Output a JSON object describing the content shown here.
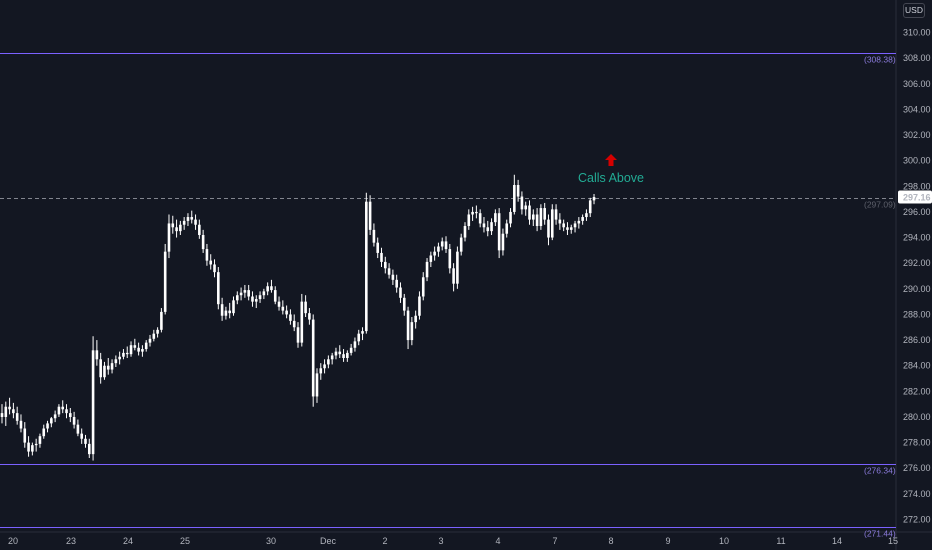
{
  "chart_data": {
    "type": "candlestick",
    "currency": "USD",
    "x_ticks": [
      "20",
      "23",
      "24",
      "25",
      "30",
      "Dec",
      "2",
      "3",
      "4",
      "7",
      "8",
      "9",
      "10",
      "11",
      "14",
      "15"
    ],
    "y_ticks": [
      "272.00",
      "274.00",
      "276.00",
      "278.00",
      "280.00",
      "282.00",
      "284.00",
      "286.00",
      "288.00",
      "290.00",
      "292.00",
      "294.00",
      "296.00",
      "298.00",
      "300.00",
      "302.00",
      "304.00",
      "306.00",
      "308.00",
      "310.00"
    ],
    "ylim": [
      271.0,
      312.0
    ],
    "last_price": "297.16",
    "horizontal_levels": [
      {
        "value": 308.38,
        "label": "308.38",
        "color": "#7b61ff",
        "style": "solid"
      },
      {
        "value": 297.09,
        "label": "297.09",
        "color": "#787b86",
        "style": "dashed"
      },
      {
        "value": 276.34,
        "label": "276.34",
        "color": "#7b61ff",
        "style": "solid"
      },
      {
        "value": 271.44,
        "label": "271.44",
        "color": "#7b61ff",
        "style": "solid"
      }
    ],
    "annotation": {
      "text": "Calls Above",
      "price": 299.3,
      "color": "#22ab94",
      "arrow_color": "#d50000"
    },
    "colors": {
      "background": "#131722",
      "candle": "#ffffff",
      "last_price_bg": "#ffffff",
      "last_price_text": "#131722"
    },
    "series": [
      {
        "values": [
          [
            280.3,
            281.0,
            279.5,
            280.0
          ],
          [
            280.0,
            281.2,
            279.3,
            280.8
          ],
          [
            280.8,
            281.5,
            280.2,
            280.6
          ],
          [
            280.6,
            281.1,
            279.9,
            280.3
          ],
          [
            280.3,
            280.8,
            279.4,
            279.7
          ],
          [
            279.7,
            280.2,
            278.8,
            279.1
          ],
          [
            279.1,
            279.6,
            277.6,
            278.0
          ],
          [
            278.0,
            278.5,
            276.9,
            277.3
          ],
          [
            277.3,
            278.0,
            277.0,
            277.8
          ],
          [
            277.8,
            278.3,
            277.3,
            277.9
          ],
          [
            277.9,
            278.7,
            277.6,
            278.5
          ],
          [
            278.5,
            279.4,
            278.3,
            279.1
          ],
          [
            279.1,
            279.7,
            278.8,
            279.5
          ],
          [
            279.5,
            280.0,
            279.2,
            279.9
          ],
          [
            279.9,
            280.5,
            279.6,
            280.2
          ],
          [
            280.2,
            281.0,
            280.0,
            280.8
          ],
          [
            280.8,
            281.3,
            280.3,
            280.6
          ],
          [
            280.6,
            281.0,
            279.9,
            280.3
          ],
          [
            280.3,
            280.7,
            279.6,
            280.0
          ],
          [
            280.0,
            280.4,
            279.1,
            279.4
          ],
          [
            279.4,
            279.8,
            278.5,
            278.7
          ],
          [
            278.7,
            279.1,
            277.9,
            278.3
          ],
          [
            278.3,
            278.6,
            277.6,
            277.9
          ],
          [
            277.9,
            278.3,
            276.8,
            277.1
          ],
          [
            277.1,
            286.3,
            276.6,
            285.2
          ],
          [
            285.2,
            286.0,
            284.0,
            284.5
          ],
          [
            284.5,
            285.0,
            282.6,
            283.1
          ],
          [
            283.1,
            284.3,
            282.9,
            284.0
          ],
          [
            284.0,
            284.6,
            283.3,
            283.7
          ],
          [
            283.7,
            284.5,
            283.4,
            284.2
          ],
          [
            284.2,
            284.8,
            283.9,
            284.5
          ],
          [
            284.5,
            285.1,
            284.1,
            284.7
          ],
          [
            284.7,
            285.3,
            284.5,
            285.0
          ],
          [
            285.0,
            285.5,
            284.6,
            284.9
          ],
          [
            284.9,
            285.9,
            284.7,
            285.6
          ],
          [
            285.6,
            286.1,
            285.2,
            285.4
          ],
          [
            285.4,
            285.8,
            284.8,
            285.1
          ],
          [
            285.1,
            285.6,
            284.7,
            285.3
          ],
          [
            285.3,
            286.0,
            285.1,
            285.8
          ],
          [
            285.8,
            286.4,
            285.5,
            286.1
          ],
          [
            286.1,
            286.8,
            285.9,
            286.5
          ],
          [
            286.5,
            287.0,
            286.2,
            286.8
          ],
          [
            286.8,
            288.5,
            286.6,
            288.2
          ],
          [
            288.2,
            293.5,
            288.0,
            292.9
          ],
          [
            292.9,
            295.8,
            292.4,
            295.1
          ],
          [
            295.1,
            295.7,
            294.3,
            294.8
          ],
          [
            294.8,
            295.4,
            294.0,
            294.5
          ],
          [
            294.5,
            295.3,
            294.2,
            295.0
          ],
          [
            295.0,
            295.6,
            294.6,
            295.3
          ],
          [
            295.3,
            295.9,
            294.9,
            295.6
          ],
          [
            295.6,
            296.1,
            295.1,
            295.4
          ],
          [
            295.4,
            295.8,
            294.6,
            295.0
          ],
          [
            295.0,
            295.4,
            293.9,
            294.2
          ],
          [
            294.2,
            294.6,
            292.8,
            293.1
          ],
          [
            293.1,
            293.5,
            291.8,
            292.2
          ],
          [
            292.2,
            292.7,
            291.5,
            291.9
          ],
          [
            291.9,
            292.3,
            290.9,
            291.3
          ],
          [
            291.3,
            291.7,
            288.4,
            288.8
          ],
          [
            288.8,
            289.3,
            287.5,
            287.9
          ],
          [
            287.9,
            288.6,
            287.6,
            288.3
          ],
          [
            288.3,
            288.9,
            287.7,
            288.1
          ],
          [
            288.1,
            289.4,
            287.9,
            289.1
          ],
          [
            289.1,
            289.8,
            288.8,
            289.5
          ],
          [
            289.5,
            290.1,
            289.1,
            289.7
          ],
          [
            289.7,
            290.3,
            289.3,
            289.9
          ],
          [
            289.9,
            290.3,
            289.1,
            289.4
          ],
          [
            289.4,
            289.8,
            288.6,
            289.0
          ],
          [
            289.0,
            289.5,
            288.5,
            289.2
          ],
          [
            289.2,
            289.8,
            288.9,
            289.5
          ],
          [
            289.5,
            290.0,
            289.2,
            289.8
          ],
          [
            289.8,
            290.5,
            289.5,
            290.2
          ],
          [
            290.2,
            290.7,
            289.7,
            289.9
          ],
          [
            289.9,
            290.2,
            288.8,
            289.0
          ],
          [
            289.0,
            289.4,
            288.3,
            288.6
          ],
          [
            288.6,
            289.1,
            288.0,
            288.3
          ],
          [
            288.3,
            288.7,
            287.7,
            288.0
          ],
          [
            288.0,
            288.4,
            287.2,
            287.5
          ],
          [
            287.5,
            288.0,
            286.7,
            287.0
          ],
          [
            287.0,
            287.4,
            285.4,
            285.8
          ],
          [
            285.8,
            289.6,
            285.5,
            289.0
          ],
          [
            289.0,
            289.5,
            287.8,
            288.1
          ],
          [
            288.1,
            288.5,
            287.2,
            287.6
          ],
          [
            287.6,
            288.0,
            280.8,
            281.6
          ],
          [
            281.6,
            283.8,
            281.1,
            283.4
          ],
          [
            283.4,
            284.2,
            282.9,
            283.8
          ],
          [
            283.8,
            284.5,
            283.4,
            284.1
          ],
          [
            284.1,
            284.8,
            283.8,
            284.5
          ],
          [
            284.5,
            285.0,
            284.1,
            284.8
          ],
          [
            284.8,
            285.4,
            284.5,
            285.1
          ],
          [
            285.1,
            285.6,
            284.6,
            284.9
          ],
          [
            284.9,
            285.3,
            284.3,
            284.6
          ],
          [
            284.6,
            285.2,
            284.3,
            285.0
          ],
          [
            285.0,
            285.7,
            284.8,
            285.4
          ],
          [
            285.4,
            286.2,
            285.1,
            285.9
          ],
          [
            285.9,
            286.8,
            285.6,
            286.5
          ],
          [
            286.5,
            287.0,
            286.0,
            286.7
          ],
          [
            286.7,
            297.5,
            286.5,
            296.8
          ],
          [
            296.8,
            297.3,
            294.2,
            294.6
          ],
          [
            294.6,
            295.1,
            293.3,
            293.6
          ],
          [
            293.6,
            294.0,
            292.4,
            292.8
          ],
          [
            292.8,
            293.2,
            291.7,
            292.1
          ],
          [
            292.1,
            292.5,
            291.2,
            291.6
          ],
          [
            291.6,
            292.0,
            290.8,
            291.1
          ],
          [
            291.1,
            291.5,
            290.3,
            290.7
          ],
          [
            290.7,
            291.1,
            289.7,
            290.1
          ],
          [
            290.1,
            290.5,
            288.9,
            289.3
          ],
          [
            289.3,
            289.6,
            287.9,
            288.3
          ],
          [
            288.3,
            288.6,
            285.3,
            286.0
          ],
          [
            286.0,
            287.8,
            285.6,
            287.4
          ],
          [
            287.4,
            288.3,
            286.9,
            287.9
          ],
          [
            287.9,
            289.8,
            287.6,
            289.4
          ],
          [
            289.4,
            291.3,
            289.1,
            290.9
          ],
          [
            290.9,
            292.4,
            290.6,
            292.1
          ],
          [
            292.1,
            292.9,
            291.7,
            292.6
          ],
          [
            292.6,
            293.3,
            292.2,
            292.9
          ],
          [
            292.9,
            293.6,
            292.5,
            293.3
          ],
          [
            293.3,
            294.0,
            293.0,
            293.7
          ],
          [
            293.7,
            294.1,
            292.8,
            293.1
          ],
          [
            293.1,
            293.5,
            291.2,
            291.6
          ],
          [
            291.6,
            292.0,
            289.8,
            290.4
          ],
          [
            290.4,
            293.3,
            290.0,
            292.9
          ],
          [
            292.9,
            294.3,
            292.6,
            294.0
          ],
          [
            294.0,
            295.2,
            293.7,
            294.9
          ],
          [
            294.9,
            296.2,
            294.6,
            295.8
          ],
          [
            295.8,
            296.4,
            295.3,
            296.0
          ],
          [
            296.0,
            296.5,
            295.5,
            295.9
          ],
          [
            295.9,
            296.2,
            294.8,
            295.1
          ],
          [
            295.1,
            295.6,
            294.4,
            294.8
          ],
          [
            294.8,
            295.3,
            294.1,
            294.5
          ],
          [
            294.5,
            295.5,
            294.2,
            295.2
          ],
          [
            295.2,
            296.2,
            294.9,
            295.9
          ],
          [
            295.9,
            296.3,
            292.4,
            293.0
          ],
          [
            293.0,
            294.7,
            292.6,
            294.3
          ],
          [
            294.3,
            295.4,
            294.0,
            295.1
          ],
          [
            295.1,
            296.3,
            294.8,
            296.0
          ],
          [
            296.0,
            298.9,
            295.8,
            298.1
          ],
          [
            298.1,
            298.5,
            296.8,
            297.2
          ],
          [
            297.2,
            297.6,
            295.8,
            296.2
          ],
          [
            296.2,
            296.8,
            295.7,
            296.5
          ],
          [
            296.5,
            296.9,
            295.0,
            295.4
          ],
          [
            295.4,
            296.2,
            294.9,
            295.8
          ],
          [
            295.8,
            296.3,
            294.5,
            294.9
          ],
          [
            294.9,
            296.6,
            294.6,
            296.3
          ],
          [
            296.3,
            296.7,
            295.0,
            295.4
          ],
          [
            295.4,
            295.8,
            293.4,
            294.0
          ],
          [
            294.0,
            296.6,
            293.8,
            296.2
          ],
          [
            296.2,
            296.6,
            295.0,
            295.4
          ],
          [
            295.4,
            295.9,
            294.6,
            295.1
          ],
          [
            295.1,
            295.4,
            294.5,
            294.8
          ],
          [
            294.8,
            295.2,
            294.2,
            294.6
          ],
          [
            294.6,
            295.0,
            294.3,
            294.8
          ],
          [
            294.8,
            295.3,
            294.4,
            295.1
          ],
          [
            295.1,
            295.6,
            294.7,
            295.3
          ],
          [
            295.3,
            295.8,
            295.0,
            295.6
          ],
          [
            295.6,
            296.2,
            295.3,
            295.9
          ],
          [
            295.9,
            297.1,
            295.6,
            296.9
          ],
          [
            296.9,
            297.4,
            296.6,
            297.16
          ]
        ]
      }
    ]
  }
}
